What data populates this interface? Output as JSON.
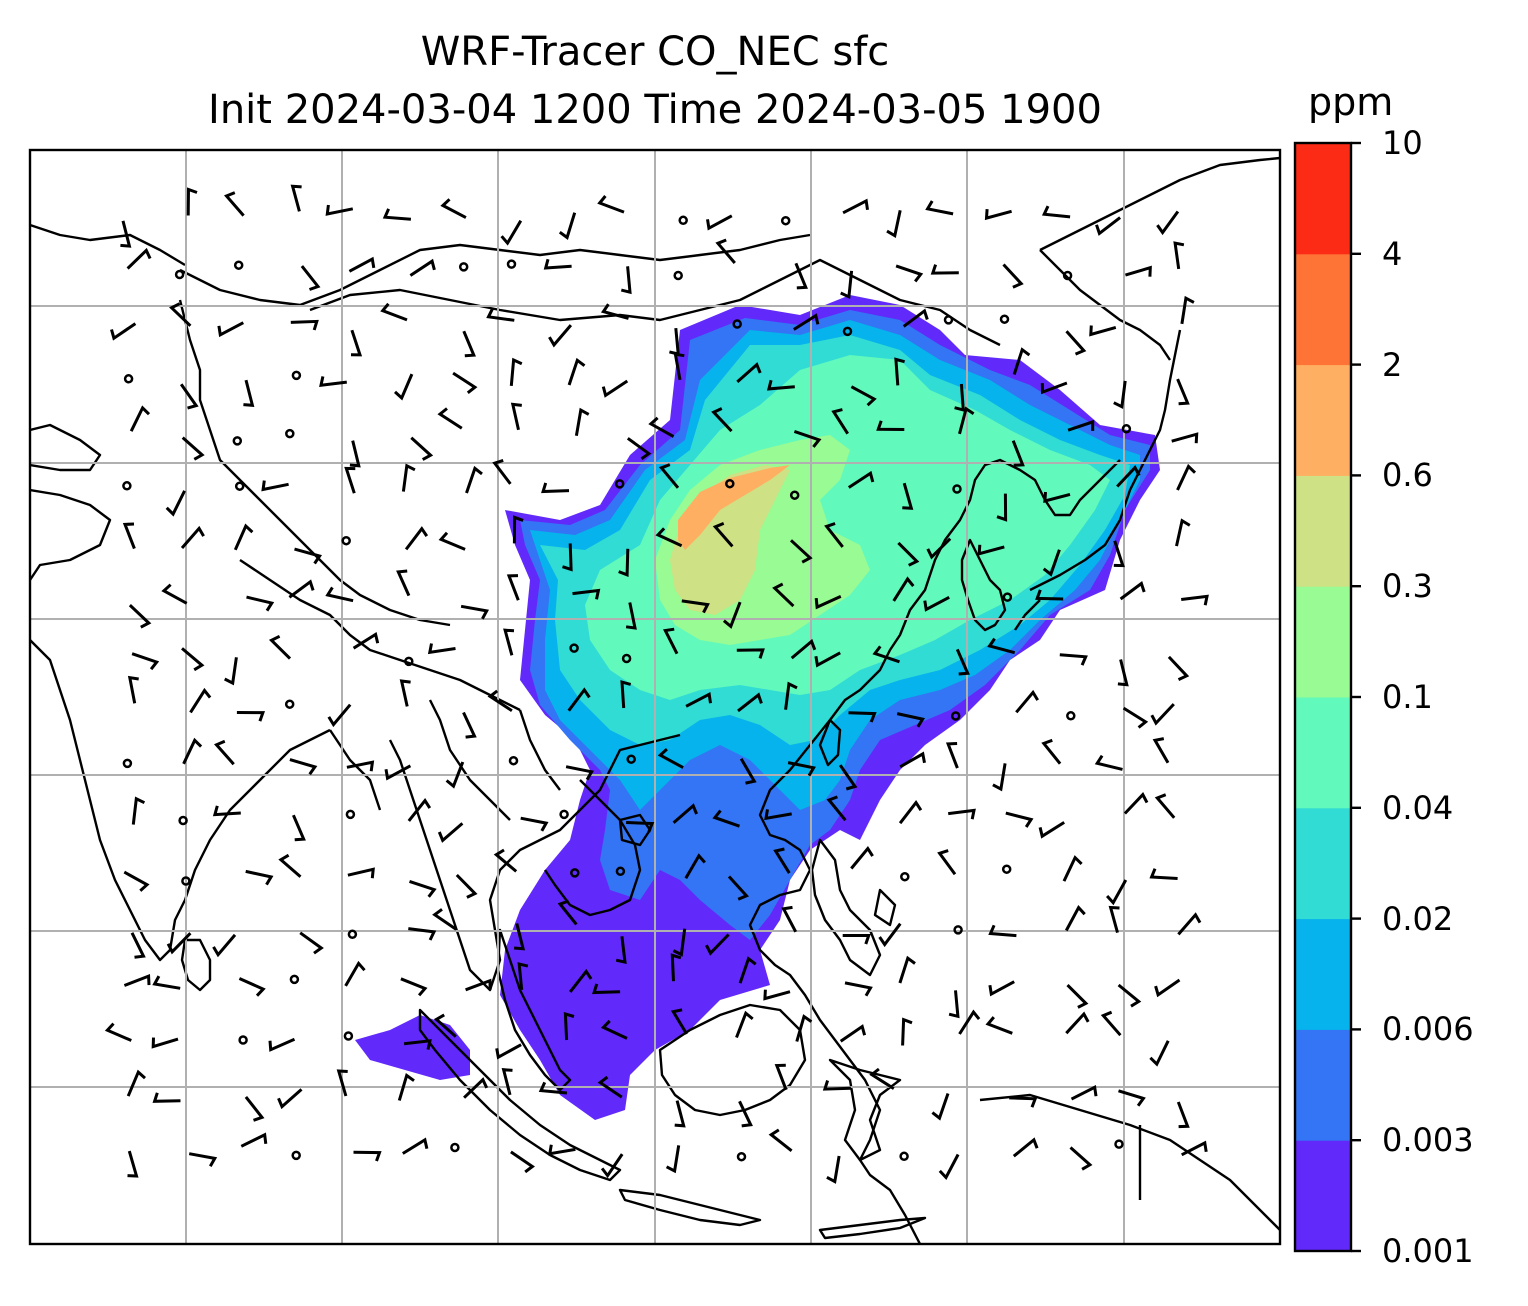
{
  "title_line1": "WRF-Tracer CO_NEC sfc",
  "title_line2": "Init 2024-03-04 1200 Time 2024-03-05 1900",
  "colorbar": {
    "unit": "ppm",
    "levels": [
      "0.001",
      "0.003",
      "0.006",
      "0.02",
      "0.04",
      "0.1",
      "0.3",
      "0.6",
      "2",
      "4",
      "10"
    ],
    "colors": [
      "#6229fb",
      "#3375f4",
      "#06b3ec",
      "#31dcd4",
      "#62f9bc",
      "#98fb93",
      "#cee184",
      "#feaf61",
      "#fe7336",
      "#fc2b15"
    ]
  },
  "map": {
    "graticule": "lat/lon grid, light gray",
    "coastline_color": "#000000",
    "wind_barbs": "black",
    "station_markers": "open circles"
  }
}
